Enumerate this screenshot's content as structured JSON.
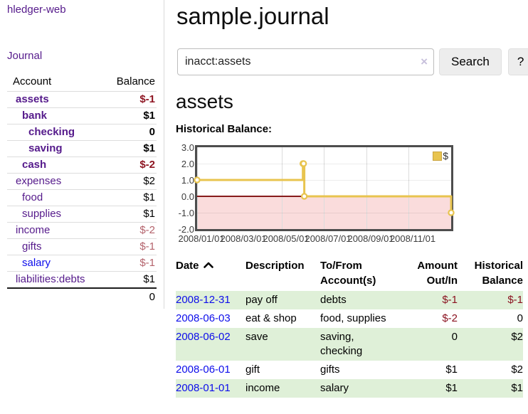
{
  "app": {
    "brand": "hledger-web"
  },
  "sidebar": {
    "journal_label": "Journal",
    "table": {
      "account_header": "Account",
      "balance_header": "Balance",
      "rows": [
        {
          "name": "assets",
          "balance": "$-1"
        },
        {
          "name": "bank",
          "balance": "$1"
        },
        {
          "name": "checking",
          "balance": "0"
        },
        {
          "name": "saving",
          "balance": "$1"
        },
        {
          "name": "cash",
          "balance": "$-2"
        },
        {
          "name": "expenses",
          "balance": "$2"
        },
        {
          "name": "food",
          "balance": "$1"
        },
        {
          "name": "supplies",
          "balance": "$1"
        },
        {
          "name": "income",
          "balance": "$-2"
        },
        {
          "name": "gifts",
          "balance": "$-1"
        },
        {
          "name": "salary",
          "balance": "$-1"
        },
        {
          "name": "liabilities:debts",
          "balance": "$1"
        }
      ],
      "total": "0"
    }
  },
  "header": {
    "title": "sample.journal"
  },
  "search": {
    "value": "inacct:assets",
    "clear_icon": "×",
    "button_label": "Search",
    "help_label": "?"
  },
  "account_page": {
    "heading": "assets",
    "chart_label": "Historical Balance:"
  },
  "chart_data": {
    "type": "line",
    "title": "Historical Balance",
    "step": true,
    "series": [
      {
        "name": "$",
        "points": [
          [
            "2008-01-01",
            1
          ],
          [
            "2008-06-01",
            2
          ],
          [
            "2008-06-02",
            2
          ],
          [
            "2008-06-03",
            0
          ],
          [
            "2008-12-31",
            -1
          ]
        ]
      }
    ],
    "x_range": [
      "2008-01-01",
      "2008-12-31"
    ],
    "xticks": [
      "2008/01/01",
      "2008/03/01",
      "2008/05/01",
      "2008/07/01",
      "2008/09/01",
      "2008/11/01"
    ],
    "yticks": [
      "3.0",
      "2.0",
      "1.0",
      "0.0",
      "-1.0",
      "-2.0"
    ],
    "ylim": [
      -2,
      3
    ],
    "grid": true,
    "legend": "$",
    "legend_position": "top-right",
    "colors": {
      "line": "#e8c44f",
      "marker_fill": "#ffffff",
      "negative_region": "#fadcdc",
      "zero_line": "#871b1b"
    }
  },
  "register": {
    "headers": {
      "date": "Date",
      "description": "Description",
      "accounts": "To/From Account(s)",
      "amount": "Amount Out/In",
      "balance": "Historical Balance"
    },
    "rows": [
      {
        "date": "2008-12-31",
        "description": "pay off",
        "accounts": "debts",
        "amount": "$-1",
        "balance": "$-1"
      },
      {
        "date": "2008-06-03",
        "description": "eat & shop",
        "accounts": "food, supplies",
        "amount": "$-2",
        "balance": "0"
      },
      {
        "date": "2008-06-02",
        "description": "save",
        "accounts": "saving, checking",
        "amount": "0",
        "balance": "$2"
      },
      {
        "date": "2008-06-01",
        "description": "gift",
        "accounts": "gifts",
        "amount": "$1",
        "balance": "$2"
      },
      {
        "date": "2008-01-01",
        "description": "income",
        "accounts": "salary",
        "amount": "$1",
        "balance": "$1"
      }
    ]
  }
}
